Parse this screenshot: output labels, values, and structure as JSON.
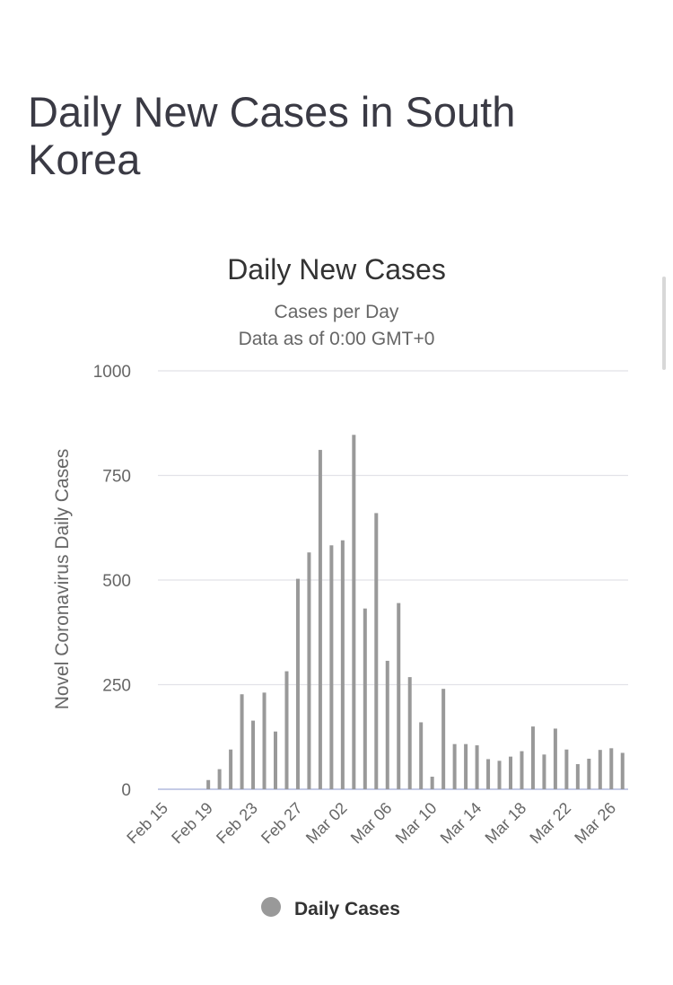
{
  "page": {
    "heading": "Daily New Cases in South Korea"
  },
  "chart_data": {
    "type": "bar",
    "title": "Daily New Cases",
    "subtitle_lines": [
      "Cases per Day",
      "Data as of 0:00 GMT+0"
    ],
    "xlabel": "",
    "ylabel": "Novel Coronavirus Daily Cases",
    "ylim": [
      0,
      1000
    ],
    "yticks": [
      0,
      250,
      500,
      750,
      1000
    ],
    "grid": true,
    "legend_position": "bottom-center",
    "bar_color": "#999999",
    "categories": [
      "Feb 15",
      "Feb 16",
      "Feb 17",
      "Feb 18",
      "Feb 19",
      "Feb 20",
      "Feb 21",
      "Feb 22",
      "Feb 23",
      "Feb 24",
      "Feb 25",
      "Feb 26",
      "Feb 27",
      "Feb 28",
      "Feb 29",
      "Mar 01",
      "Mar 02",
      "Mar 03",
      "Mar 04",
      "Mar 05",
      "Mar 06",
      "Mar 07",
      "Mar 08",
      "Mar 09",
      "Mar 10",
      "Mar 11",
      "Mar 12",
      "Mar 13",
      "Mar 14",
      "Mar 15",
      "Mar 16",
      "Mar 17",
      "Mar 18",
      "Mar 19",
      "Mar 20",
      "Mar 21",
      "Mar 22",
      "Mar 23",
      "Mar 24",
      "Mar 25",
      "Mar 26",
      "Mar 27"
    ],
    "tick_labels": [
      "Feb 15",
      "Feb 19",
      "Feb 23",
      "Feb 27",
      "Mar 02",
      "Mar 06",
      "Mar 10",
      "Mar 14",
      "Mar 18",
      "Mar 22",
      "Mar 26"
    ],
    "series": [
      {
        "name": "Daily Cases",
        "values": [
          0,
          0,
          0,
          0,
          22,
          48,
          95,
          227,
          164,
          231,
          138,
          282,
          503,
          566,
          811,
          583,
          595,
          847,
          432,
          660,
          307,
          445,
          268,
          160,
          30,
          240,
          108,
          108,
          105,
          72,
          68,
          78,
          91,
          150,
          83,
          145,
          95,
          60,
          73,
          94,
          98,
          87
        ]
      }
    ]
  }
}
